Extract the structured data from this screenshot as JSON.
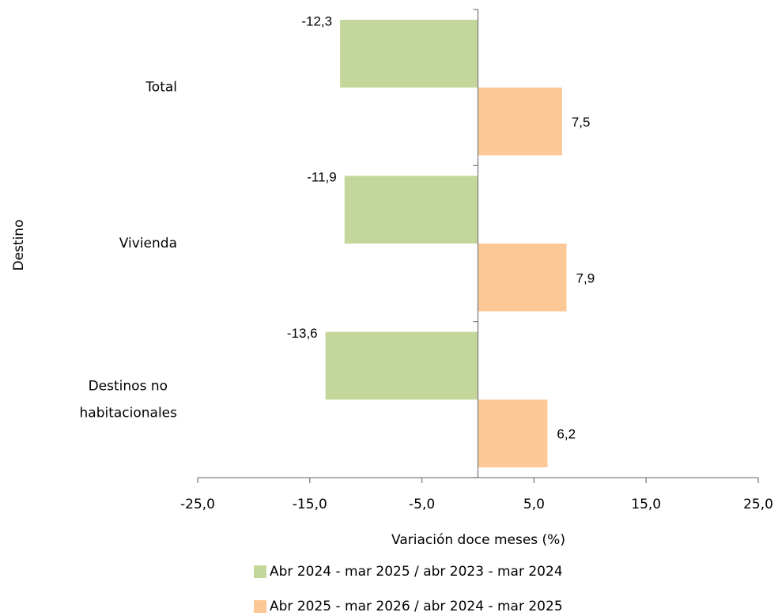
{
  "chart_data": {
    "type": "hbar",
    "categories": [
      "Total",
      "Vivienda",
      "Destinos no habitacionales"
    ],
    "series": [
      {
        "name": "Abr 2024 - mar 2025 / abr 2023 - mar 2024",
        "color": "#c4d79b",
        "values": [
          -12.3,
          -11.9,
          -13.6
        ],
        "value_labels": [
          "-12,3",
          "-11,9",
          "-13,6"
        ]
      },
      {
        "name": "Abr 2025 - mar 2026 / abr 2024 - mar 2025",
        "color": "#fcc896",
        "values": [
          7.5,
          7.9,
          6.2
        ],
        "value_labels": [
          "7,5",
          "7,9",
          "6,2"
        ]
      }
    ],
    "xlim": [
      -25,
      25
    ],
    "xticks": [
      {
        "value": -25,
        "label": "-25,0"
      },
      {
        "value": -15,
        "label": "-15,0"
      },
      {
        "value": -5,
        "label": "-5,0"
      },
      {
        "value": 5,
        "label": "5,0"
      },
      {
        "value": 15,
        "label": "15,0"
      },
      {
        "value": 25,
        "label": "25,0"
      }
    ],
    "xlabel": "Variación doce meses (%)",
    "ylabel": "Destino",
    "legend": "bottom"
  }
}
